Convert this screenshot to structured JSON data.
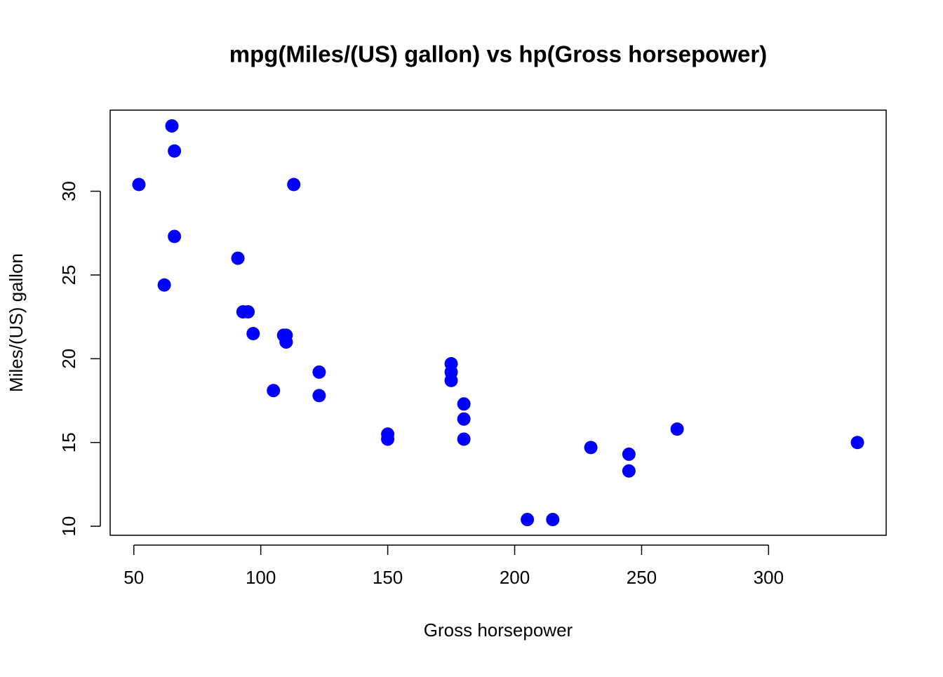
{
  "chart_data": {
    "type": "scatter",
    "title": "mpg(Miles/(US) gallon) vs hp(Gross horsepower)",
    "x_label": "Gross horsepower",
    "y_label": "Miles/(US) gallon",
    "color": "#0000ff",
    "x": [
      110,
      110,
      93,
      110,
      175,
      105,
      245,
      62,
      95,
      123,
      123,
      180,
      180,
      180,
      205,
      215,
      230,
      66,
      52,
      65,
      97,
      150,
      150,
      245,
      175,
      66,
      91,
      113,
      264,
      175,
      335,
      109
    ],
    "values": [
      21.0,
      21.0,
      22.8,
      21.4,
      18.7,
      18.1,
      14.3,
      24.4,
      22.8,
      19.2,
      17.8,
      16.4,
      17.3,
      15.2,
      10.4,
      10.4,
      14.7,
      32.4,
      30.4,
      33.9,
      21.5,
      15.5,
      15.2,
      13.3,
      19.2,
      27.3,
      26.0,
      30.4,
      15.8,
      19.7,
      15.0,
      21.4
    ],
    "xlim": [
      40.68,
      346.32
    ],
    "ylim": [
      9.46,
      34.84
    ],
    "xticks": [
      50,
      100,
      150,
      200,
      250,
      300
    ],
    "yticks": [
      10,
      15,
      20,
      25,
      30
    ]
  }
}
